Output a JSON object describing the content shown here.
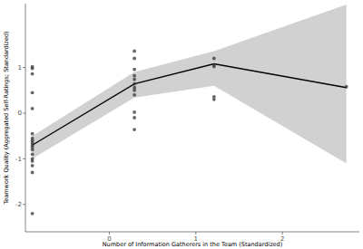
{
  "chart_data": {
    "type": "scatter",
    "x_label": "Number of Information Gatherers in the Team (Standardized)",
    "y_label": "Teamwork Quality (Aggregated Self-Ratings; Standardized)",
    "xlim": [
      -0.97,
      2.89
    ],
    "ylim": [
      -2.6,
      2.4
    ],
    "xticks": [
      0,
      1,
      2
    ],
    "yticks": [
      -2,
      -1,
      0,
      1
    ],
    "grid": false,
    "series": [
      {
        "type": "scatter",
        "marker": "circle",
        "color": "#333333",
        "x": [
          -0.89,
          -0.89,
          -0.89,
          -0.89,
          -0.89,
          -0.89,
          -0.89,
          -0.89,
          -0.89,
          -0.89,
          -0.89,
          -0.89,
          -0.89,
          -0.89,
          -0.89,
          -0.89,
          -0.89,
          -0.89,
          0.29,
          0.29,
          0.29,
          0.29,
          0.29,
          0.29,
          0.29,
          0.29,
          0.29,
          0.29,
          0.29,
          0.29,
          1.21,
          1.21,
          1.21,
          1.21,
          1.21,
          2.74
        ],
        "values": [
          1.02,
          0.98,
          0.86,
          0.45,
          0.1,
          -0.45,
          -0.55,
          -0.6,
          -0.65,
          -0.7,
          -0.75,
          -0.8,
          -0.9,
          -1.0,
          -1.05,
          -1.15,
          -1.3,
          -2.2,
          1.36,
          1.2,
          0.96,
          0.82,
          0.74,
          0.64,
          0.56,
          0.5,
          0.4,
          0.02,
          -0.1,
          -0.36,
          1.2,
          1.06,
          1.02,
          0.36,
          0.3,
          0.58
        ]
      },
      {
        "type": "line",
        "color": "#000000",
        "x": [
          -0.89,
          0.29,
          1.21,
          2.74
        ],
        "values": [
          -0.7,
          0.64,
          1.08,
          0.56
        ],
        "lower": [
          -1.0,
          0.34,
          0.6,
          -1.1
        ],
        "upper": [
          -0.5,
          0.9,
          1.36,
          2.38
        ]
      }
    ]
  }
}
